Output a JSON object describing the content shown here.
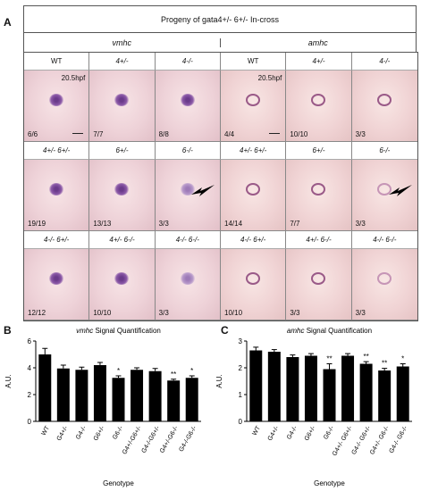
{
  "panel_a": {
    "letter": "A",
    "title": "Progeny of gata4+/- 6+/- In-cross",
    "groups": [
      "vmhc",
      "amhc"
    ],
    "stage_label": "20.5hpf",
    "rows": [
      {
        "labels": [
          "WT",
          "4+/-",
          "4-/-",
          "WT",
          "4+/-",
          "4-/-"
        ],
        "counts": [
          "6/6",
          "7/7",
          "8/8",
          "4/4",
          "10/10",
          "3/3"
        ]
      },
      {
        "labels": [
          "4+/- 6+/-",
          "6+/-",
          "6-/-",
          "4+/- 6+/-",
          "6+/-",
          "6-/-"
        ],
        "counts": [
          "19/19",
          "13/13",
          "3/3",
          "14/14",
          "7/7",
          "3/3"
        ]
      },
      {
        "labels": [
          "4-/- 6+/-",
          "4+/- 6-/-",
          "4-/- 6-/-",
          "4-/- 6+/-",
          "4+/- 6-/-",
          "4-/- 6-/-"
        ],
        "counts": [
          "12/12",
          "10/10",
          "3/3",
          "10/10",
          "3/3",
          "3/3"
        ]
      }
    ]
  },
  "panel_b": {
    "letter": "B",
    "gene": "vmhc",
    "title_rest": "Signal Quantification"
  },
  "panel_c": {
    "letter": "C",
    "gene": "amhc",
    "title_rest": "Signal Quantification"
  },
  "chart_data": [
    {
      "type": "bar",
      "title": "vmhc Signal Quantification",
      "xlabel": "Genotype",
      "ylabel": "A.U.",
      "ylim": [
        0,
        6
      ],
      "yticks": [
        0,
        2,
        4,
        6
      ],
      "categories": [
        "WT",
        "G4+/-",
        "G4-/-",
        "G6+/-",
        "G6-/-",
        "G4+/-G6+/-",
        "G4-/-G6+/-",
        "G4+/-G6-/-",
        "G4-/-G6-/-"
      ],
      "values": [
        5.0,
        3.95,
        3.85,
        4.2,
        3.25,
        3.85,
        3.75,
        3.05,
        3.25
      ],
      "errors": [
        0.45,
        0.25,
        0.2,
        0.2,
        0.15,
        0.15,
        0.2,
        0.1,
        0.15
      ],
      "significance": [
        "",
        "",
        "",
        "",
        "*",
        "",
        "",
        "**",
        "*"
      ]
    },
    {
      "type": "bar",
      "title": "amhc Signal Quantification",
      "xlabel": "Genotype",
      "ylabel": "A.U.",
      "ylim": [
        0,
        3
      ],
      "yticks": [
        0,
        1,
        2,
        3
      ],
      "categories": [
        "WT",
        "G4+/-",
        "G4-/-",
        "G6+/-",
        "G6-/-",
        "G4+/- G6+/-",
        "G4-/- G6+/-",
        "G4+/- G6-/-",
        "G4-/- G6-/-"
      ],
      "values": [
        2.65,
        2.6,
        2.4,
        2.45,
        1.95,
        2.45,
        2.15,
        1.9,
        2.05
      ],
      "errors": [
        0.12,
        0.08,
        0.08,
        0.08,
        0.2,
        0.08,
        0.08,
        0.08,
        0.1
      ],
      "significance": [
        "",
        "",
        "",
        "",
        "**",
        "",
        "**",
        "**",
        "*"
      ]
    }
  ],
  "colors": {
    "bar": "#000000",
    "vmhc_stain": "#6a3a8a",
    "amhc_stain": "#9a5a88"
  }
}
